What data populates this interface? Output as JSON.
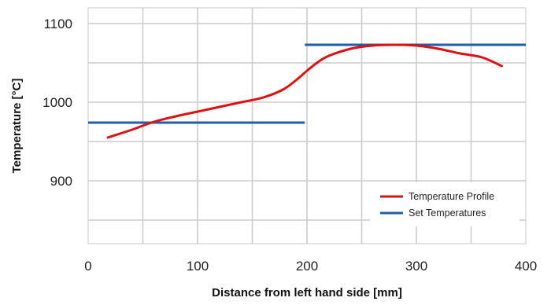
{
  "chart_data": {
    "type": "line",
    "title": "",
    "xlabel": "Distance from left hand side [mm]",
    "ylabel": "Temperature [°C]",
    "xlim": [
      0,
      400
    ],
    "ylim": [
      820,
      1120
    ],
    "x_ticks": [
      0,
      100,
      200,
      300,
      400
    ],
    "y_ticks": [
      900,
      1000,
      1100
    ],
    "grid": true,
    "legend_position": "bottom-right",
    "series": [
      {
        "name": "Temperature Profile",
        "color": "#dd1111",
        "x": [
          18,
          40,
          60,
          80,
          100,
          120,
          140,
          160,
          178,
          190,
          200,
          210,
          220,
          240,
          260,
          280,
          300,
          320,
          340,
          360,
          378
        ],
        "y": [
          955,
          965,
          975,
          982,
          988,
          994,
          1000,
          1006,
          1016,
          1028,
          1040,
          1051,
          1059,
          1068,
          1072,
          1073,
          1072,
          1068,
          1062,
          1057,
          1046
        ]
      },
      {
        "name": "Set Temperatures",
        "color": "#1f5fad",
        "segments": [
          {
            "x": [
              0,
              198
            ],
            "y": 974
          },
          {
            "x": [
              198,
              400
            ],
            "y": 1073
          }
        ]
      }
    ]
  }
}
